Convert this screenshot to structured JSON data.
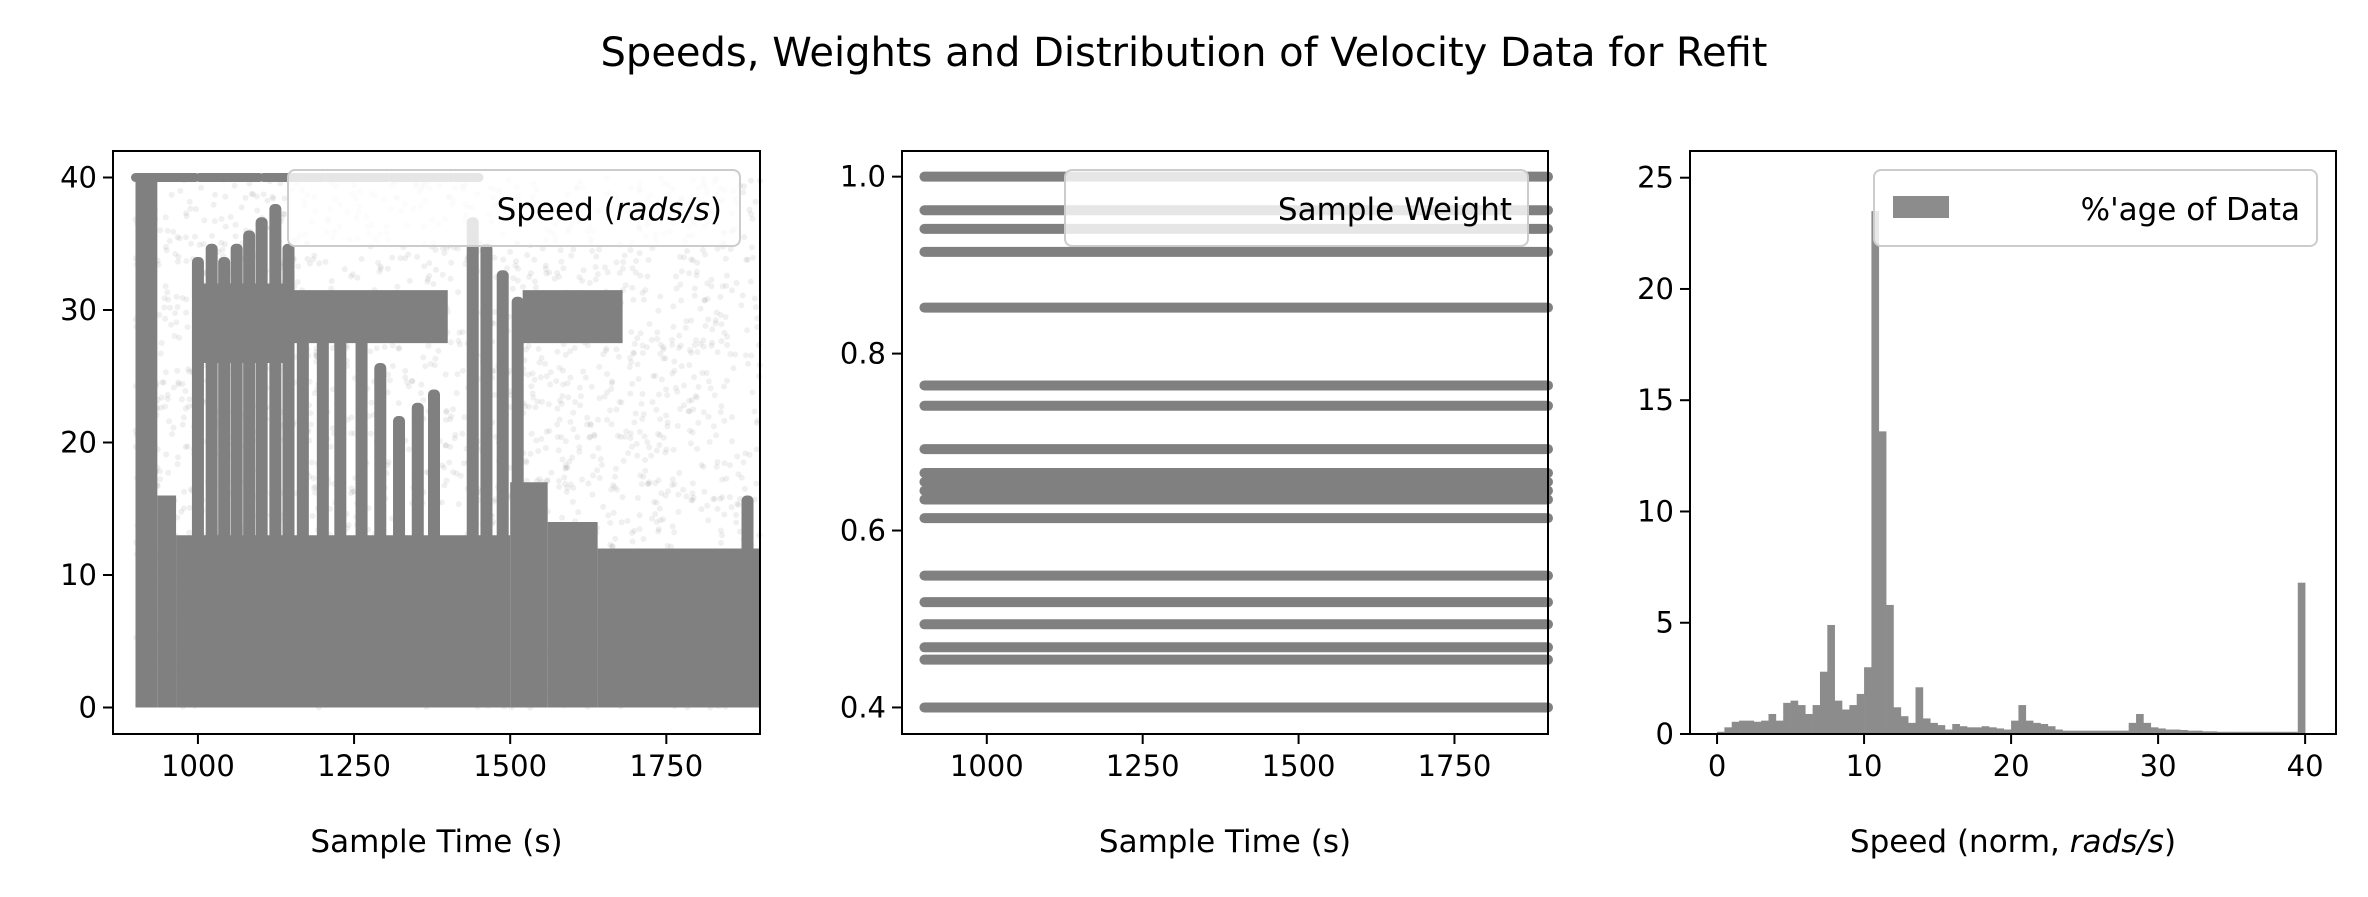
{
  "title": "Speeds, Weights and Distribution of Velocity Data for Refit",
  "chart_data": [
    {
      "type": "scatter",
      "xlabel": "Sample Time (s)",
      "ylabel": "",
      "legend": {
        "label_main": "Speed (",
        "label_italic": "rads/s",
        "label_end": ")",
        "placement": "upper right"
      },
      "xlim": [
        864,
        1900
      ],
      "ylim": [
        -2,
        42
      ],
      "xticks": [
        1000,
        1250,
        1500,
        1750
      ],
      "xtick_labels": [
        "1000",
        "1250",
        "1500",
        "1750"
      ],
      "yticks": [
        0,
        10,
        20,
        30,
        40
      ],
      "ytick_labels": [
        "0",
        "10",
        "20",
        "30",
        "40"
      ],
      "color": "#808080",
      "dense_regions": [
        {
          "x": [
            900,
            935
          ],
          "y": [
            0,
            40
          ]
        },
        {
          "x": [
            935,
            965
          ],
          "y": [
            0,
            16
          ]
        },
        {
          "x": [
            965,
            1500
          ],
          "y": [
            0,
            13
          ]
        },
        {
          "x": [
            1500,
            1560
          ],
          "y": [
            0,
            17
          ]
        },
        {
          "x": [
            1560,
            1640
          ],
          "y": [
            0,
            14
          ]
        },
        {
          "x": [
            1640,
            1900
          ],
          "y": [
            0,
            12
          ]
        },
        {
          "x": [
            1000,
            1140
          ],
          "y": [
            26,
            32
          ]
        },
        {
          "x": [
            1150,
            1400
          ],
          "y": [
            27.5,
            31.5
          ]
        },
        {
          "x": [
            1520,
            1680
          ],
          "y": [
            27.5,
            31.5
          ]
        }
      ],
      "spikes": [
        [
          1000,
          34
        ],
        [
          1022,
          35
        ],
        [
          1042,
          34
        ],
        [
          1062,
          35
        ],
        [
          1082,
          36
        ],
        [
          1102,
          37
        ],
        [
          1124,
          38
        ],
        [
          1145,
          35
        ],
        [
          1168,
          31
        ],
        [
          1200,
          30
        ],
        [
          1228,
          30
        ],
        [
          1262,
          28
        ],
        [
          1292,
          26
        ],
        [
          1322,
          22
        ],
        [
          1352,
          23
        ],
        [
          1378,
          24
        ],
        [
          1440,
          37
        ],
        [
          1462,
          35
        ],
        [
          1488,
          33
        ],
        [
          1512,
          31
        ],
        [
          1880,
          16
        ]
      ],
      "saturated_line": {
        "y": 40,
        "x": [
          900,
          1450
        ]
      },
      "noise_region": {
        "x": [
          900,
          1900
        ],
        "y": [
          0,
          40
        ]
      }
    },
    {
      "type": "scatter",
      "xlabel": "Sample Time (s)",
      "legend": {
        "label": "Sample Weight",
        "placement": "upper right"
      },
      "xlim": [
        864,
        1900
      ],
      "ylim": [
        0.37,
        1.029
      ],
      "xticks": [
        1000,
        1250,
        1500,
        1750
      ],
      "xtick_labels": [
        "1000",
        "1250",
        "1500",
        "1750"
      ],
      "yticks": [
        0.4,
        0.6,
        0.8,
        1.0
      ],
      "ytick_labels": [
        "0.4",
        "0.6",
        "0.8",
        "1.0"
      ],
      "color": "#808080",
      "x_range": [
        900,
        1900
      ],
      "weight_levels": [
        1.0,
        0.962,
        0.941,
        0.915,
        0.852,
        0.764,
        0.741,
        0.692,
        0.665,
        0.655,
        0.645,
        0.635,
        0.614,
        0.549,
        0.519,
        0.494,
        0.468,
        0.454,
        0.4
      ]
    },
    {
      "type": "bar",
      "xlabel_main": "Speed (norm, ",
      "xlabel_italic": "rads/s",
      "xlabel_end": ")",
      "legend": {
        "label": "%'age of Data",
        "placement": "upper right"
      },
      "xlim": [
        -1.84,
        42.1
      ],
      "ylim": [
        0,
        26.2
      ],
      "xticks": [
        0,
        10,
        20,
        30,
        40
      ],
      "xtick_labels": [
        "0",
        "10",
        "20",
        "30",
        "40"
      ],
      "yticks": [
        0,
        5,
        10,
        15,
        20,
        25
      ],
      "ytick_labels": [
        "0",
        "5",
        "10",
        "15",
        "20",
        "25"
      ],
      "color": "#8c8c8c",
      "bin_start": 0,
      "bin_width": 0.5,
      "values": [
        0.1,
        0.3,
        0.55,
        0.6,
        0.6,
        0.55,
        0.6,
        0.9,
        0.6,
        1.4,
        1.5,
        1.3,
        0.9,
        1.3,
        2.8,
        4.9,
        1.5,
        1.1,
        1.3,
        1.8,
        3.0,
        23.5,
        13.6,
        5.8,
        1.2,
        0.8,
        0.5,
        2.1,
        0.7,
        0.5,
        0.4,
        0.2,
        0.45,
        0.35,
        0.3,
        0.3,
        0.35,
        0.3,
        0.25,
        0.2,
        0.6,
        1.3,
        0.6,
        0.5,
        0.45,
        0.35,
        0.2,
        0.15,
        0.15,
        0.15,
        0.15,
        0.15,
        0.15,
        0.15,
        0.15,
        0.15,
        0.5,
        0.9,
        0.5,
        0.3,
        0.25,
        0.2,
        0.2,
        0.18,
        0.15,
        0.15,
        0.12,
        0.12,
        0.1,
        0.1,
        0.1,
        0.1,
        0.1,
        0.1,
        0.1,
        0.1,
        0.1,
        0.1,
        0.1,
        6.8
      ]
    }
  ]
}
